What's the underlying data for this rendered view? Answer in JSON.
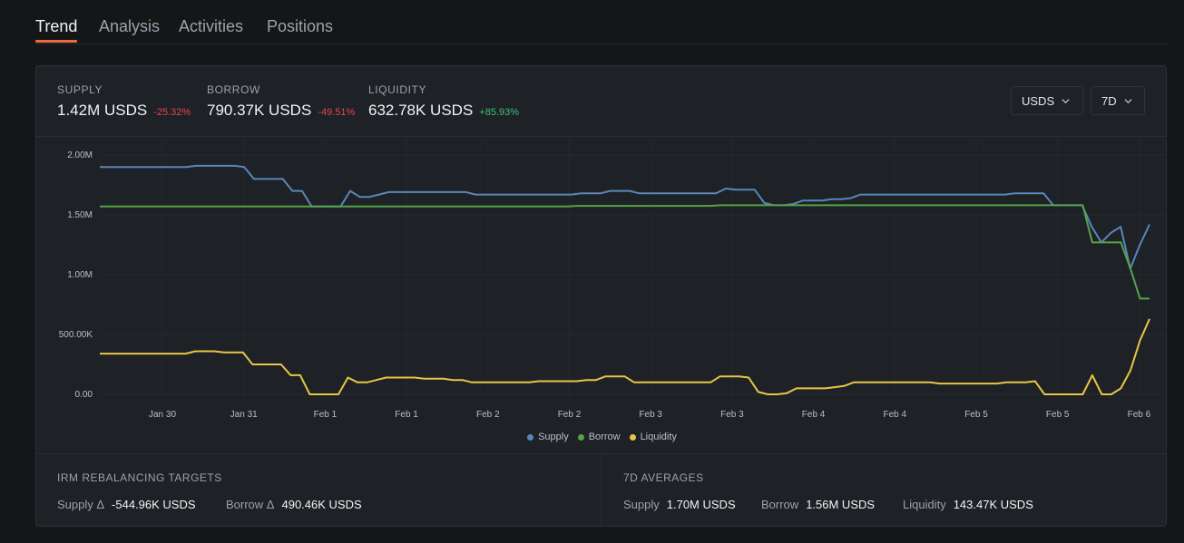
{
  "tabs": [
    "Trend",
    "Analysis",
    "Activities",
    "Positions"
  ],
  "stats": {
    "supply": {
      "label": "SUPPLY",
      "value": "1.42M USDS",
      "change": "-25.32%"
    },
    "borrow": {
      "label": "BORROW",
      "value": "790.37K USDS",
      "change": "-49.51%"
    },
    "liquidity": {
      "label": "LIQUIDITY",
      "value": "632.78K USDS",
      "change": "+85.93%"
    }
  },
  "controls": {
    "asset": "USDS",
    "range": "7D"
  },
  "chart_data": {
    "type": "line",
    "y_ticks": [
      "2.00M",
      "1.50M",
      "1.00M",
      "500.00K",
      "0.00"
    ],
    "x_ticks": [
      "Jan 30",
      "Jan 31",
      "Feb 1",
      "Feb 1",
      "Feb 2",
      "Feb 2",
      "Feb 3",
      "Feb 3",
      "Feb 4",
      "Feb 4",
      "Feb 5",
      "Feb 5",
      "Feb 6"
    ],
    "ylim": [
      0,
      2000000
    ],
    "grid": true,
    "legend": "bottom",
    "series": [
      {
        "name": "Supply",
        "color": "#5b86b8",
        "values": [
          1.9,
          1.9,
          1.9,
          1.9,
          1.9,
          1.9,
          1.9,
          1.9,
          1.9,
          1.9,
          1.91,
          1.91,
          1.91,
          1.91,
          1.91,
          1.9,
          1.8,
          1.8,
          1.8,
          1.8,
          1.7,
          1.7,
          1.57,
          1.57,
          1.57,
          1.57,
          1.7,
          1.65,
          1.65,
          1.67,
          1.69,
          1.69,
          1.69,
          1.69,
          1.69,
          1.69,
          1.69,
          1.69,
          1.69,
          1.67,
          1.67,
          1.67,
          1.67,
          1.67,
          1.67,
          1.67,
          1.67,
          1.67,
          1.67,
          1.67,
          1.68,
          1.68,
          1.68,
          1.7,
          1.7,
          1.7,
          1.68,
          1.68,
          1.68,
          1.68,
          1.68,
          1.68,
          1.68,
          1.68,
          1.68,
          1.72,
          1.71,
          1.71,
          1.71,
          1.6,
          1.58,
          1.58,
          1.59,
          1.62,
          1.62,
          1.62,
          1.63,
          1.63,
          1.64,
          1.67,
          1.67,
          1.67,
          1.67,
          1.67,
          1.67,
          1.67,
          1.67,
          1.67,
          1.67,
          1.67,
          1.67,
          1.67,
          1.67,
          1.67,
          1.67,
          1.68,
          1.68,
          1.68,
          1.68,
          1.58,
          1.58,
          1.58,
          1.58,
          1.4,
          1.27,
          1.35,
          1.4,
          1.05,
          1.25,
          1.42
        ]
      },
      {
        "name": "Borrow",
        "color": "#56a24a",
        "values": [
          1.57,
          1.57,
          1.57,
          1.57,
          1.57,
          1.57,
          1.57,
          1.57,
          1.57,
          1.57,
          1.57,
          1.57,
          1.57,
          1.57,
          1.57,
          1.57,
          1.57,
          1.57,
          1.57,
          1.57,
          1.57,
          1.57,
          1.57,
          1.57,
          1.57,
          1.57,
          1.57,
          1.57,
          1.57,
          1.57,
          1.57,
          1.57,
          1.57,
          1.57,
          1.57,
          1.57,
          1.57,
          1.57,
          1.57,
          1.57,
          1.57,
          1.57,
          1.57,
          1.57,
          1.57,
          1.57,
          1.57,
          1.57,
          1.57,
          1.57,
          1.575,
          1.575,
          1.575,
          1.575,
          1.575,
          1.575,
          1.575,
          1.575,
          1.575,
          1.575,
          1.575,
          1.575,
          1.575,
          1.575,
          1.575,
          1.58,
          1.58,
          1.58,
          1.58,
          1.58,
          1.58,
          1.58,
          1.58,
          1.58,
          1.58,
          1.58,
          1.58,
          1.58,
          1.58,
          1.58,
          1.58,
          1.58,
          1.58,
          1.58,
          1.58,
          1.58,
          1.58,
          1.58,
          1.58,
          1.58,
          1.58,
          1.58,
          1.58,
          1.58,
          1.58,
          1.58,
          1.58,
          1.58,
          1.58,
          1.58,
          1.58,
          1.58,
          1.58,
          1.58,
          1.27,
          1.27,
          1.27,
          1.27,
          1.05,
          0.8,
          0.8
        ]
      },
      {
        "name": "Liquidity",
        "color": "#e8c547",
        "values": [
          0.34,
          0.34,
          0.34,
          0.34,
          0.34,
          0.34,
          0.34,
          0.34,
          0.34,
          0.34,
          0.36,
          0.36,
          0.36,
          0.35,
          0.35,
          0.35,
          0.25,
          0.25,
          0.25,
          0.25,
          0.16,
          0.16,
          0.0,
          0.0,
          0.0,
          0.0,
          0.14,
          0.1,
          0.1,
          0.12,
          0.14,
          0.14,
          0.14,
          0.14,
          0.13,
          0.13,
          0.13,
          0.12,
          0.12,
          0.1,
          0.1,
          0.1,
          0.1,
          0.1,
          0.1,
          0.1,
          0.11,
          0.11,
          0.11,
          0.11,
          0.11,
          0.12,
          0.12,
          0.15,
          0.15,
          0.15,
          0.1,
          0.1,
          0.1,
          0.1,
          0.1,
          0.1,
          0.1,
          0.1,
          0.1,
          0.15,
          0.15,
          0.15,
          0.14,
          0.02,
          0.0,
          0.0,
          0.01,
          0.05,
          0.05,
          0.05,
          0.05,
          0.06,
          0.07,
          0.1,
          0.1,
          0.1,
          0.1,
          0.1,
          0.1,
          0.1,
          0.1,
          0.1,
          0.09,
          0.09,
          0.09,
          0.09,
          0.09,
          0.09,
          0.09,
          0.1,
          0.1,
          0.1,
          0.11,
          0.0,
          0.0,
          0.0,
          0.0,
          0.0,
          0.16,
          0.0,
          0.0,
          0.05,
          0.2,
          0.45,
          0.63
        ]
      }
    ]
  },
  "irm": {
    "title": "IRM REBALANCING TARGETS",
    "supply_label": "Supply Δ",
    "supply_value": "-544.96K USDS",
    "borrow_label": "Borrow Δ",
    "borrow_value": "490.46K USDS"
  },
  "averages": {
    "title": "7D AVERAGES",
    "supply_label": "Supply",
    "supply_value": "1.70M USDS",
    "borrow_label": "Borrow",
    "borrow_value": "1.56M USDS",
    "liquidity_label": "Liquidity",
    "liquidity_value": "143.47K USDS"
  }
}
